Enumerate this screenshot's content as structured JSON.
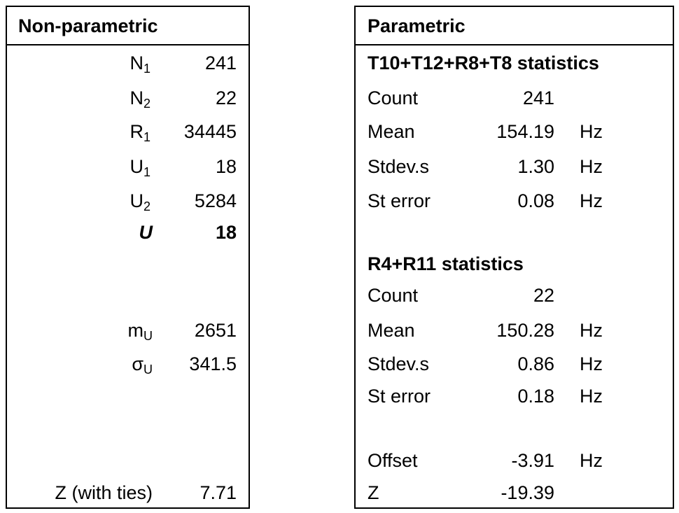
{
  "left": {
    "title": "Non-parametric",
    "rows": [
      {
        "symbol": "N",
        "sub": "1",
        "value": "241"
      },
      {
        "symbol": "N",
        "sub": "2",
        "value": "22"
      },
      {
        "symbol": "R",
        "sub": "1",
        "value": "34445"
      },
      {
        "symbol": "U",
        "sub": "1",
        "value": "18"
      },
      {
        "symbol": "U",
        "sub": "2",
        "value": "5284"
      },
      {
        "symbol": "U",
        "value": "18"
      },
      {
        "symbol": "m",
        "sub": "U",
        "value": "2651"
      },
      {
        "symbol": "σ",
        "sub": "U",
        "value": "341.5"
      },
      {
        "symbol": "Z (with ties)",
        "value": "7.71"
      }
    ]
  },
  "right": {
    "title": "Parametric",
    "sections": [
      {
        "heading": "T10+T12+R8+T8 statistics",
        "rows": [
          {
            "label": "Count",
            "value": "241"
          },
          {
            "label": "Mean",
            "value": "154.19",
            "unit": "Hz"
          },
          {
            "label": "Stdev.s",
            "value": "1.30",
            "unit": "Hz"
          },
          {
            "label": "St error",
            "value": "0.08",
            "unit": "Hz"
          }
        ]
      },
      {
        "heading": "R4+R11 statistics",
        "rows": [
          {
            "label": "Count",
            "value": "22"
          },
          {
            "label": "Mean",
            "value": "150.28",
            "unit": "Hz"
          },
          {
            "label": "Stdev.s",
            "value": "0.86",
            "unit": "Hz"
          },
          {
            "label": "St error",
            "value": "0.18",
            "unit": "Hz"
          }
        ]
      }
    ],
    "rows": [
      {
        "label": "Offset",
        "value": "-3.91",
        "unit": "Hz"
      },
      {
        "label": "Z",
        "value": "-19.39"
      }
    ]
  }
}
